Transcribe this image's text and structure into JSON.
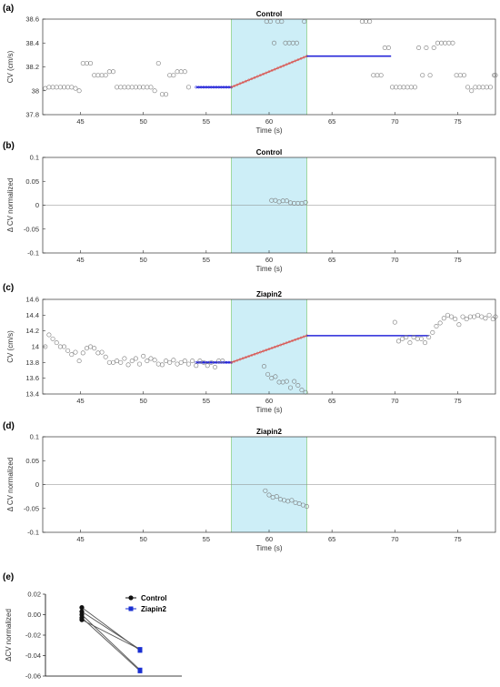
{
  "colors": {
    "shade": "#cdeef7",
    "shade_edge": "#8fd18a",
    "marker": "#7a7a7a",
    "fit_line": "#2626d9",
    "ramp_line": "#d9534f",
    "control": "#111111",
    "ziapin2": "#1a2fd1"
  },
  "chart_data": [
    {
      "id": "a",
      "panel_label": "(a)",
      "type": "scatter",
      "title": "Control",
      "xlabel": "Time (s)",
      "ylabel": "CV (cm/s)",
      "xlim": [
        42,
        78
      ],
      "ylim": [
        37.8,
        38.6
      ],
      "xticks": [
        45,
        50,
        55,
        60,
        65,
        70,
        75
      ],
      "yticks": [
        37.8,
        38,
        38.2,
        38.4,
        38.6
      ],
      "ytick_labels": [
        "37.8",
        "38",
        "38.2",
        "38.4",
        "38.6"
      ],
      "shaded_region": [
        57,
        63
      ],
      "points": [
        [
          42.2,
          38.02
        ],
        [
          42.5,
          38.03
        ],
        [
          42.8,
          38.03
        ],
        [
          43.1,
          38.03
        ],
        [
          43.4,
          38.03
        ],
        [
          43.7,
          38.03
        ],
        [
          44.0,
          38.03
        ],
        [
          44.3,
          38.03
        ],
        [
          44.6,
          38.02
        ],
        [
          44.9,
          38.0
        ],
        [
          45.2,
          38.23
        ],
        [
          45.5,
          38.23
        ],
        [
          45.8,
          38.23
        ],
        [
          46.1,
          38.13
        ],
        [
          46.4,
          38.13
        ],
        [
          46.7,
          38.13
        ],
        [
          47.0,
          38.13
        ],
        [
          47.3,
          38.16
        ],
        [
          47.6,
          38.16
        ],
        [
          47.9,
          38.03
        ],
        [
          48.2,
          38.03
        ],
        [
          48.5,
          38.03
        ],
        [
          48.8,
          38.03
        ],
        [
          49.1,
          38.03
        ],
        [
          49.4,
          38.03
        ],
        [
          49.7,
          38.03
        ],
        [
          50.0,
          38.03
        ],
        [
          50.3,
          38.03
        ],
        [
          50.6,
          38.03
        ],
        [
          50.9,
          38.0
        ],
        [
          51.2,
          38.23
        ],
        [
          51.5,
          37.97
        ],
        [
          51.8,
          37.97
        ],
        [
          52.1,
          38.13
        ],
        [
          52.4,
          38.13
        ],
        [
          52.7,
          38.16
        ],
        [
          53.0,
          38.16
        ],
        [
          53.3,
          38.16
        ],
        [
          53.6,
          38.03
        ],
        [
          59.8,
          38.58
        ],
        [
          60.1,
          38.58
        ],
        [
          60.4,
          38.4
        ],
        [
          60.7,
          38.58
        ],
        [
          61.0,
          38.58
        ],
        [
          61.3,
          38.4
        ],
        [
          61.6,
          38.4
        ],
        [
          61.9,
          38.4
        ],
        [
          62.2,
          38.4
        ],
        [
          62.8,
          38.58
        ],
        [
          67.4,
          38.58
        ],
        [
          67.7,
          38.58
        ],
        [
          68.0,
          38.58
        ],
        [
          68.3,
          38.13
        ],
        [
          68.6,
          38.13
        ],
        [
          68.9,
          38.13
        ],
        [
          69.2,
          38.36
        ],
        [
          69.5,
          38.36
        ],
        [
          69.8,
          38.03
        ],
        [
          70.1,
          38.03
        ],
        [
          70.4,
          38.03
        ],
        [
          70.7,
          38.03
        ],
        [
          71.0,
          38.03
        ],
        [
          71.3,
          38.03
        ],
        [
          71.6,
          38.03
        ],
        [
          71.9,
          38.36
        ],
        [
          72.2,
          38.13
        ],
        [
          72.5,
          38.36
        ],
        [
          72.8,
          38.13
        ],
        [
          73.1,
          38.36
        ],
        [
          73.4,
          38.4
        ],
        [
          73.7,
          38.4
        ],
        [
          74.0,
          38.4
        ],
        [
          74.3,
          38.4
        ],
        [
          74.6,
          38.4
        ],
        [
          74.9,
          38.13
        ],
        [
          75.2,
          38.13
        ],
        [
          75.5,
          38.13
        ],
        [
          75.8,
          38.03
        ],
        [
          76.1,
          38.0
        ],
        [
          76.4,
          38.03
        ],
        [
          76.7,
          38.03
        ],
        [
          77.0,
          38.03
        ],
        [
          77.3,
          38.03
        ],
        [
          77.6,
          38.03
        ],
        [
          77.9,
          38.13
        ],
        [
          78.0,
          38.13
        ]
      ],
      "baseline": {
        "x": [
          54.2,
          57
        ],
        "y": 38.03
      },
      "ramp": {
        "x": [
          57,
          63
        ],
        "y": [
          38.03,
          38.29
        ]
      },
      "plateau": {
        "x": [
          63,
          69.7
        ],
        "y": 38.29
      }
    },
    {
      "id": "b",
      "panel_label": "(b)",
      "type": "scatter",
      "title": "Control",
      "xlabel": "Time (s)",
      "ylabel": "Δ CV normalized",
      "xlim": [
        42,
        78
      ],
      "ylim": [
        -0.1,
        0.1
      ],
      "xticks": [
        45,
        50,
        55,
        60,
        65,
        70,
        75
      ],
      "yticks": [
        -0.1,
        -0.05,
        0,
        0.05,
        0.1
      ],
      "ytick_labels": [
        "-0.1",
        "-0.05",
        "0",
        "0.05",
        "0.1"
      ],
      "shaded_region": [
        57,
        63
      ],
      "zero_line": true,
      "points": [
        [
          60.2,
          0.01
        ],
        [
          60.5,
          0.01
        ],
        [
          60.8,
          0.007
        ],
        [
          61.1,
          0.009
        ],
        [
          61.4,
          0.009
        ],
        [
          61.7,
          0.005
        ],
        [
          62.0,
          0.004
        ],
        [
          62.3,
          0.004
        ],
        [
          62.6,
          0.004
        ],
        [
          62.9,
          0.006
        ]
      ]
    },
    {
      "id": "c",
      "panel_label": "(c)",
      "type": "scatter",
      "title": "Ziapin2",
      "xlabel": "Time (s)",
      "ylabel": "CV (cm/s)",
      "xlim": [
        42,
        78
      ],
      "ylim": [
        13.4,
        14.6
      ],
      "xticks": [
        45,
        50,
        55,
        60,
        65,
        70,
        75
      ],
      "yticks": [
        13.4,
        13.6,
        13.8,
        14,
        14.2,
        14.4,
        14.6
      ],
      "ytick_labels": [
        "13.4",
        "13.6",
        "13.8",
        "14",
        "14.2",
        "14.4",
        "14.6"
      ],
      "shaded_region": [
        57,
        63
      ],
      "points": [
        [
          42.2,
          14.0
        ],
        [
          42.5,
          14.15
        ],
        [
          42.8,
          14.1
        ],
        [
          43.1,
          14.05
        ],
        [
          43.4,
          14.0
        ],
        [
          43.7,
          14.0
        ],
        [
          44.0,
          13.95
        ],
        [
          44.3,
          13.9
        ],
        [
          44.6,
          13.93
        ],
        [
          44.9,
          13.82
        ],
        [
          45.2,
          13.92
        ],
        [
          45.5,
          13.98
        ],
        [
          45.8,
          14.0
        ],
        [
          46.1,
          13.98
        ],
        [
          46.4,
          13.92
        ],
        [
          46.7,
          13.93
        ],
        [
          47.0,
          13.87
        ],
        [
          47.3,
          13.8
        ],
        [
          47.6,
          13.8
        ],
        [
          47.9,
          13.82
        ],
        [
          48.2,
          13.8
        ],
        [
          48.5,
          13.85
        ],
        [
          48.8,
          13.77
        ],
        [
          49.1,
          13.82
        ],
        [
          49.4,
          13.85
        ],
        [
          49.7,
          13.78
        ],
        [
          50.0,
          13.88
        ],
        [
          50.3,
          13.82
        ],
        [
          50.6,
          13.85
        ],
        [
          50.9,
          13.83
        ],
        [
          51.2,
          13.78
        ],
        [
          51.5,
          13.77
        ],
        [
          51.8,
          13.82
        ],
        [
          52.1,
          13.8
        ],
        [
          52.4,
          13.83
        ],
        [
          52.7,
          13.78
        ],
        [
          53.0,
          13.8
        ],
        [
          53.3,
          13.82
        ],
        [
          53.6,
          13.78
        ],
        [
          53.9,
          13.82
        ],
        [
          54.2,
          13.76
        ],
        [
          54.5,
          13.82
        ],
        [
          54.8,
          13.8
        ],
        [
          55.1,
          13.76
        ],
        [
          55.4,
          13.8
        ],
        [
          55.7,
          13.74
        ],
        [
          56.0,
          13.82
        ],
        [
          56.3,
          13.82
        ],
        [
          59.6,
          13.75
        ],
        [
          59.9,
          13.65
        ],
        [
          60.2,
          13.6
        ],
        [
          60.5,
          13.62
        ],
        [
          60.8,
          13.55
        ],
        [
          61.1,
          13.55
        ],
        [
          61.4,
          13.56
        ],
        [
          61.7,
          13.48
        ],
        [
          62.0,
          13.56
        ],
        [
          62.3,
          13.51
        ],
        [
          62.6,
          13.45
        ],
        [
          62.9,
          13.42
        ],
        [
          70.0,
          14.31
        ],
        [
          70.3,
          14.07
        ],
        [
          70.6,
          14.1
        ],
        [
          70.9,
          14.12
        ],
        [
          71.2,
          14.05
        ],
        [
          71.5,
          14.12
        ],
        [
          71.8,
          14.1
        ],
        [
          72.1,
          14.1
        ],
        [
          72.4,
          14.05
        ],
        [
          72.7,
          14.12
        ],
        [
          73.0,
          14.18
        ],
        [
          73.3,
          14.26
        ],
        [
          73.6,
          14.3
        ],
        [
          73.9,
          14.36
        ],
        [
          74.2,
          14.4
        ],
        [
          74.5,
          14.38
        ],
        [
          74.8,
          14.35
        ],
        [
          75.1,
          14.28
        ],
        [
          75.4,
          14.38
        ],
        [
          75.7,
          14.35
        ],
        [
          76.0,
          14.38
        ],
        [
          76.3,
          14.38
        ],
        [
          76.6,
          14.4
        ],
        [
          76.9,
          14.38
        ],
        [
          77.2,
          14.36
        ],
        [
          77.5,
          14.4
        ],
        [
          77.8,
          14.35
        ],
        [
          78.0,
          14.38
        ]
      ],
      "baseline": {
        "x": [
          54.2,
          57
        ],
        "y": 13.8
      },
      "ramp": {
        "x": [
          57,
          63
        ],
        "y": [
          13.8,
          14.14
        ]
      },
      "plateau": {
        "x": [
          63,
          72.7
        ],
        "y": 14.14
      }
    },
    {
      "id": "d",
      "panel_label": "(d)",
      "type": "scatter",
      "title": "Ziapin2",
      "xlabel": "Time (s)",
      "ylabel": "Δ CV normalized",
      "xlim": [
        42,
        78
      ],
      "ylim": [
        -0.1,
        0.1
      ],
      "xticks": [
        45,
        50,
        55,
        60,
        65,
        70,
        75
      ],
      "yticks": [
        -0.1,
        -0.05,
        0,
        0.05,
        0.1
      ],
      "ytick_labels": [
        "-0.1",
        "-0.05",
        "0",
        "0.05",
        "0.1"
      ],
      "shaded_region": [
        57,
        63
      ],
      "zero_line": true,
      "points": [
        [
          59.7,
          -0.013
        ],
        [
          60.0,
          -0.022
        ],
        [
          60.3,
          -0.027
        ],
        [
          60.6,
          -0.025
        ],
        [
          60.9,
          -0.031
        ],
        [
          61.2,
          -0.033
        ],
        [
          61.5,
          -0.035
        ],
        [
          61.8,
          -0.033
        ],
        [
          62.1,
          -0.038
        ],
        [
          62.4,
          -0.04
        ],
        [
          62.7,
          -0.043
        ],
        [
          63.0,
          -0.046
        ]
      ]
    },
    {
      "id": "e",
      "panel_label": "(e)",
      "type": "line",
      "title": "",
      "xlabel": "",
      "ylabel": "ΔCV normalized",
      "categories": [
        "Control",
        "Ziapin2"
      ],
      "ylim": [
        -0.06,
        0.02
      ],
      "yticks": [
        -0.06,
        -0.04,
        -0.02,
        0,
        0.02
      ],
      "ytick_labels": [
        "-0.06",
        "-0.04",
        "-0.02",
        "0.00",
        "0.02"
      ],
      "legend": [
        "Control",
        "Ziapin2"
      ],
      "paired_series": [
        {
          "values": [
            0.007,
            -0.035
          ]
        },
        {
          "values": [
            0.003,
            -0.034
          ]
        },
        {
          "values": [
            0.0,
            -0.054
          ]
        },
        {
          "values": [
            -0.003,
            -0.055
          ]
        },
        {
          "values": [
            -0.005,
            -0.034
          ]
        }
      ]
    }
  ]
}
